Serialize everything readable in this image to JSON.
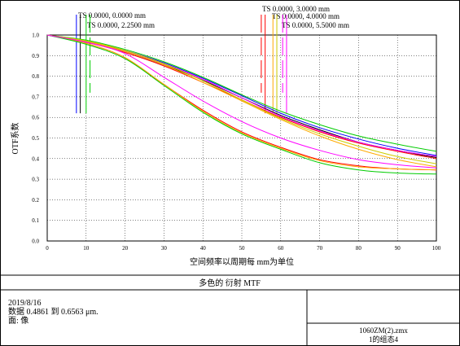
{
  "chart_data": {
    "type": "line",
    "title": "多色的 衍射 MTF",
    "xlabel": "空间频率以周期每 mm为单位",
    "ylabel": "OTF系数",
    "xlim": [
      0,
      100
    ],
    "ylim": [
      0.0,
      1.0
    ],
    "x_ticks": [
      "0",
      "10",
      "20",
      "30",
      "40",
      "50",
      "60",
      "70",
      "80",
      "90",
      "100"
    ],
    "y_ticks": [
      "0.0",
      "0.1",
      "0.2",
      "0.3",
      "0.4",
      "0.5",
      "0.6",
      "0.7",
      "0.8",
      "0.9",
      "1.0"
    ],
    "grid": true,
    "x": [
      0,
      10,
      20,
      30,
      40,
      50,
      60,
      70,
      80,
      90,
      100
    ],
    "series": [
      {
        "name": "",
        "color": "#0000ff",
        "values": [
          1.0,
          0.97,
          0.925,
          0.865,
          0.79,
          0.705,
          0.62,
          0.55,
          0.495,
          0.45,
          0.415
        ]
      },
      {
        "name": "",
        "color": "#000000",
        "values": [
          1.0,
          0.97,
          0.92,
          0.855,
          0.78,
          0.695,
          0.61,
          0.54,
          0.48,
          0.44,
          0.405
        ]
      },
      {
        "name": "",
        "color": "#00cc00",
        "values": [
          1.0,
          0.975,
          0.93,
          0.87,
          0.795,
          0.71,
          0.63,
          0.565,
          0.51,
          0.47,
          0.435
        ]
      },
      {
        "name": "",
        "color": "#ff00ff",
        "values": [
          1.0,
          0.97,
          0.92,
          0.86,
          0.785,
          0.695,
          0.605,
          0.535,
          0.48,
          0.44,
          0.41
        ]
      },
      {
        "name": "",
        "color": "#ff0000",
        "values": [
          1.0,
          0.965,
          0.915,
          0.85,
          0.77,
          0.685,
          0.6,
          0.53,
          0.475,
          0.435,
          0.4
        ]
      },
      {
        "name": "",
        "color": "#ffaa00",
        "values": [
          1.0,
          0.97,
          0.92,
          0.855,
          0.77,
          0.68,
          0.59,
          0.51,
          0.445,
          0.395,
          0.36
        ]
      },
      {
        "name": "",
        "color": "#cccc00",
        "values": [
          1.0,
          0.972,
          0.925,
          0.86,
          0.778,
          0.685,
          0.595,
          0.52,
          0.46,
          0.41,
          0.375
        ]
      },
      {
        "name": "",
        "color": "#ff0000",
        "values": [
          1.0,
          0.96,
          0.89,
          0.76,
          0.635,
          0.53,
          0.455,
          0.395,
          0.365,
          0.35,
          0.345
        ]
      },
      {
        "name": "",
        "color": "#ffaa00",
        "values": [
          1.0,
          0.96,
          0.89,
          0.76,
          0.63,
          0.525,
          0.45,
          0.39,
          0.36,
          0.35,
          0.345
        ]
      },
      {
        "name": "",
        "color": "#00cc00",
        "values": [
          1.0,
          0.955,
          0.885,
          0.755,
          0.625,
          0.52,
          0.445,
          0.38,
          0.345,
          0.33,
          0.325
        ]
      },
      {
        "name": "",
        "color": "#ff00ff",
        "values": [
          1.0,
          0.965,
          0.91,
          0.795,
          0.68,
          0.58,
          0.5,
          0.44,
          0.395,
          0.37,
          0.355
        ]
      }
    ],
    "field_markers": [
      {
        "x": 7.5,
        "color": "#0000ff",
        "dashed": false
      },
      {
        "x": 8.5,
        "color": "#000000",
        "dashed": false
      },
      {
        "x": 10.0,
        "color": "#00cc00",
        "dashed": false
      },
      {
        "x": 11.0,
        "color": "#00cc00",
        "dashed": true
      },
      {
        "x": 55.0,
        "color": "#ff0000",
        "dashed": true
      },
      {
        "x": 56.0,
        "color": "#ff0000",
        "dashed": false
      },
      {
        "x": 58.0,
        "color": "#ffaa00",
        "dashed": false
      },
      {
        "x": 59.0,
        "color": "#cccc00",
        "dashed": false
      },
      {
        "x": 60.5,
        "color": "#ff00ff",
        "dashed": true
      },
      {
        "x": 61.5,
        "color": "#ff00ff",
        "dashed": false
      }
    ],
    "legend_entries": [
      "TS 0.0000, 0.0000 mm",
      "TS 0.0000, 2.2500 mm",
      "TS 0.0000, 3.0000 mm",
      "TS 0.0000, 4.0000 mm",
      "TS 0.0000, 5.5000 mm"
    ]
  },
  "info_panel": {
    "date": "2019/8/16",
    "data_range": "数据 0.4861 到 0.6563 μm.",
    "surface": "面: 像",
    "file": "1060ZM(2).zmx",
    "config": "1的组态4"
  }
}
